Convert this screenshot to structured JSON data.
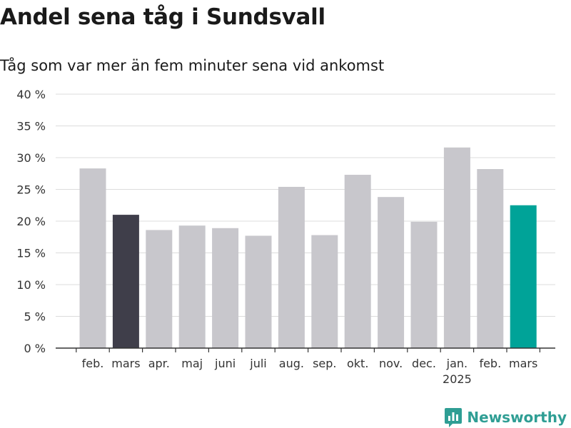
{
  "title": "Andel sena tåg i Sundsvall",
  "subtitle": "Tåg som var mer än fem minuter sena vid ankomst",
  "brand": {
    "name": "Newsworthy",
    "icon": "newsworthy-logo-icon",
    "color": "#2f9e94"
  },
  "chart_data": {
    "type": "bar",
    "title": "Andel sena tåg i Sundsvall",
    "subtitle": "Tåg som var mer än fem minuter sena vid ankomst",
    "categories": [
      "feb.",
      "mars",
      "apr.",
      "maj",
      "juni",
      "juli",
      "aug.",
      "sep.",
      "okt.",
      "nov.",
      "dec.",
      "jan.",
      "feb.",
      "mars"
    ],
    "category_sublabels": [
      "",
      "",
      "",
      "",
      "",
      "",
      "",
      "",
      "",
      "",
      "",
      "2025",
      "",
      ""
    ],
    "values": [
      28.3,
      21.0,
      18.6,
      19.3,
      18.9,
      17.7,
      25.4,
      17.8,
      27.3,
      23.8,
      19.9,
      31.6,
      28.2,
      22.5
    ],
    "y_ticks": [
      "0 %",
      "5 %",
      "10 %",
      "15 %",
      "20 %",
      "25 %",
      "30 %",
      "35 %",
      "40 %"
    ],
    "ylim": [
      0,
      40
    ],
    "unit": "%",
    "grid": true,
    "colors": {
      "default": "#c8c7cc",
      "highlight_prior_year": "#3f3e4a",
      "highlight_current": "#00a398"
    },
    "bar_colors": [
      "default",
      "highlight_prior_year",
      "default",
      "default",
      "default",
      "default",
      "default",
      "default",
      "default",
      "default",
      "default",
      "default",
      "default",
      "highlight_current"
    ]
  }
}
